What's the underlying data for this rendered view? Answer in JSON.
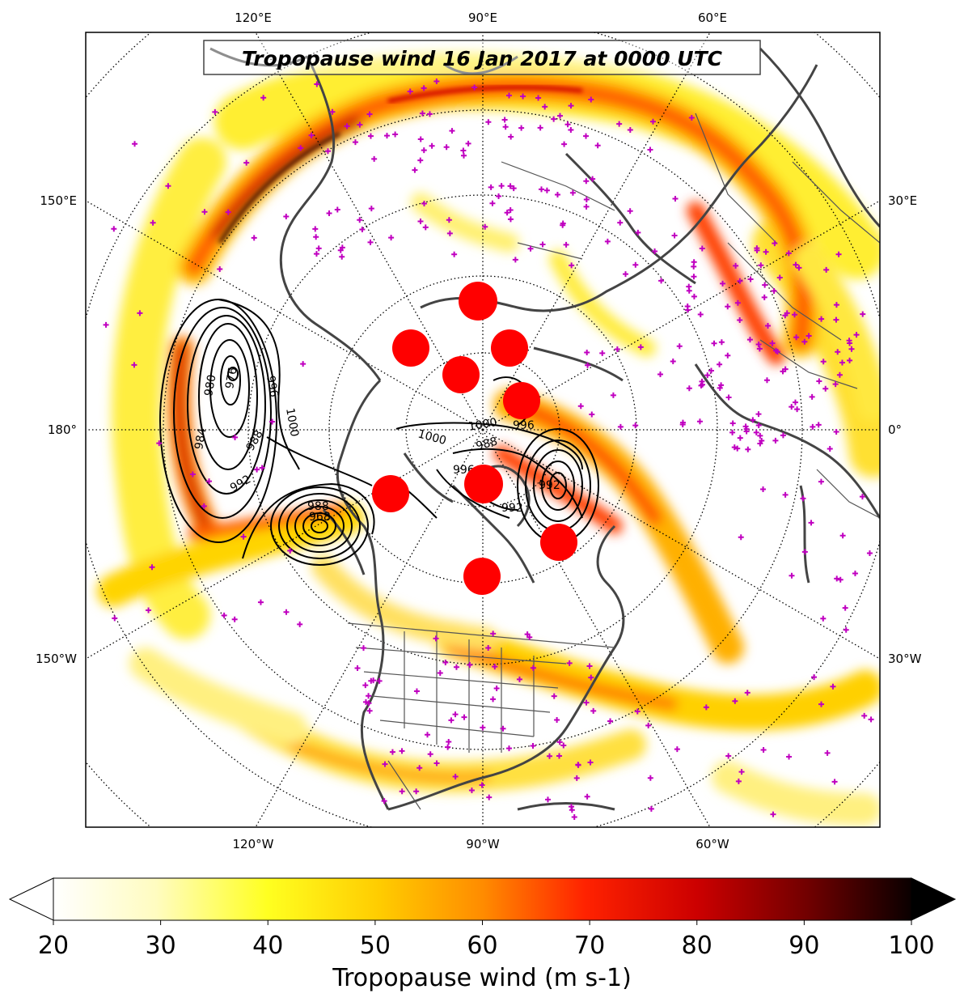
{
  "map": {
    "title": "Tropopause wind 16 Jan 2017 at 0000 UTC",
    "projection": "north-polar-stereographic",
    "central_longitude": -90,
    "graticule": "dotted",
    "edge_labels": {
      "top": [
        "120°E",
        "90°E",
        "60°E"
      ],
      "bottom": [
        "120°W",
        "90°W",
        "60°W"
      ],
      "left": [
        "150°E",
        "180°",
        "150°W"
      ],
      "right": [
        "30°E",
        "0°",
        "30°W"
      ]
    },
    "field": {
      "name": "Tropopause wind",
      "units": "m s-1",
      "palette": "hot_r"
    },
    "mslp_contours": {
      "color": "#000000",
      "labels": [
        "976",
        "980",
        "984",
        "988",
        "992",
        "996",
        "1000",
        "968",
        "988",
        "1000",
        "1000",
        "988",
        "992",
        "996",
        "992",
        "996"
      ]
    },
    "station_marker": {
      "symbol": "+",
      "color": "#c000c0"
    },
    "red_markers": {
      "color": "#ff0000",
      "count": 9
    }
  },
  "colorbar": {
    "label": "Tropopause wind (m s-1)",
    "ticks": [
      "20",
      "30",
      "40",
      "50",
      "60",
      "70",
      "80",
      "90",
      "100"
    ],
    "min": 20,
    "max": 100,
    "extend": "both"
  }
}
